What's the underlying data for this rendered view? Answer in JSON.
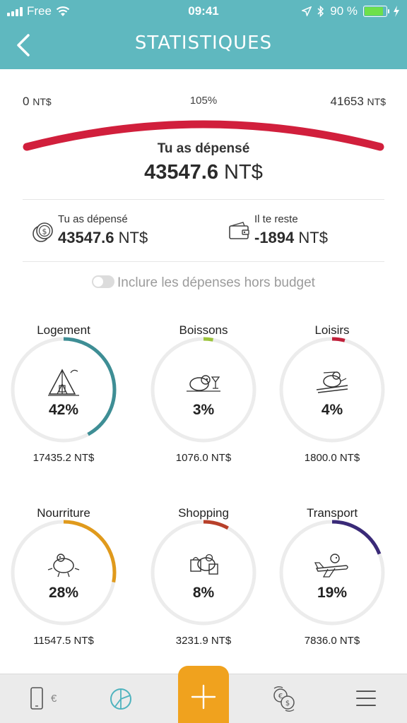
{
  "status_bar": {
    "carrier": "Free",
    "time": "09:41",
    "battery": "90 %"
  },
  "header": {
    "title": "STATISTIQUES"
  },
  "gauge": {
    "min_value": "0",
    "min_unit": "NT$",
    "percent": "105%",
    "max_value": "41653",
    "max_unit": "NT$",
    "fill_fraction": 1.0,
    "spent_label": "Tu as dépensé",
    "spent_amount": "43547.6",
    "spent_unit": "NT$"
  },
  "summary": {
    "spent": {
      "label": "Tu as dépensé",
      "amount": "43547.6",
      "unit": "NT$"
    },
    "remaining": {
      "label": "Il te reste",
      "amount": "-1894",
      "unit": "NT$"
    }
  },
  "toggle": {
    "label": "Inclure les dépenses hors budget",
    "on": false
  },
  "categories": [
    {
      "name": "Logement",
      "percent": "42%",
      "fraction": 0.42,
      "amount": "17435.2 NT$",
      "color": "#3e8e95",
      "icon": "tent-icon"
    },
    {
      "name": "Boissons",
      "percent": "3%",
      "fraction": 0.03,
      "amount": "1076.0 NT$",
      "color": "#9cc43b",
      "icon": "drink-icon"
    },
    {
      "name": "Loisirs",
      "percent": "4%",
      "fraction": 0.04,
      "amount": "1800.0 NT$",
      "color": "#c0203a",
      "icon": "ski-icon"
    },
    {
      "name": "Nourriture",
      "percent": "28%",
      "fraction": 0.28,
      "amount": "11547.5 NT$",
      "color": "#e09a1c",
      "icon": "food-icon"
    },
    {
      "name": "Shopping",
      "percent": "8%",
      "fraction": 0.08,
      "amount": "3231.9 NT$",
      "color": "#b8402a",
      "icon": "shopping-icon"
    },
    {
      "name": "Transport",
      "percent": "19%",
      "fraction": 0.19,
      "amount": "7836.0 NT$",
      "color": "#3a2a78",
      "icon": "plane-icon"
    }
  ],
  "bottom_nav": {
    "items": [
      {
        "icon": "phone-euro-icon",
        "euro_label": "€"
      },
      {
        "icon": "stats-icon"
      },
      {
        "icon": "add-icon"
      },
      {
        "icon": "currency-exchange-icon"
      },
      {
        "icon": "menu-icon"
      }
    ]
  },
  "colors": {
    "header": "#5fb8bf",
    "gauge": "#d11f3c",
    "accent": "#f0a21e"
  }
}
